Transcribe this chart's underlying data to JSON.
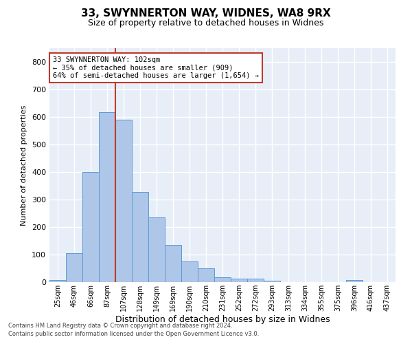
{
  "title_line1": "33, SWYNNERTON WAY, WIDNES, WA8 9RX",
  "title_line2": "Size of property relative to detached houses in Widnes",
  "xlabel": "Distribution of detached houses by size in Widnes",
  "ylabel": "Number of detached properties",
  "bin_labels": [
    "25sqm",
    "46sqm",
    "66sqm",
    "87sqm",
    "107sqm",
    "128sqm",
    "149sqm",
    "169sqm",
    "190sqm",
    "210sqm",
    "231sqm",
    "252sqm",
    "272sqm",
    "293sqm",
    "313sqm",
    "334sqm",
    "355sqm",
    "375sqm",
    "396sqm",
    "416sqm",
    "437sqm"
  ],
  "bar_heights": [
    7,
    106,
    401,
    618,
    590,
    328,
    235,
    135,
    76,
    50,
    18,
    13,
    12,
    5,
    0,
    0,
    0,
    0,
    7,
    0,
    0
  ],
  "bar_color": "#aec6e8",
  "bar_edge_color": "#5b9bd5",
  "bg_color": "#e8eef8",
  "grid_color": "#ffffff",
  "vline_x_idx": 3.5,
  "vline_color": "#c0392b",
  "annotation_text": "33 SWYNNERTON WAY: 102sqm\n← 35% of detached houses are smaller (909)\n64% of semi-detached houses are larger (1,654) →",
  "annotation_box_color": "#ffffff",
  "annotation_box_edge": "#c0392b",
  "footer_line1": "Contains HM Land Registry data © Crown copyright and database right 2024.",
  "footer_line2": "Contains public sector information licensed under the Open Government Licence v3.0.",
  "ylim": [
    0,
    850
  ],
  "yticks": [
    0,
    100,
    200,
    300,
    400,
    500,
    600,
    700,
    800
  ]
}
